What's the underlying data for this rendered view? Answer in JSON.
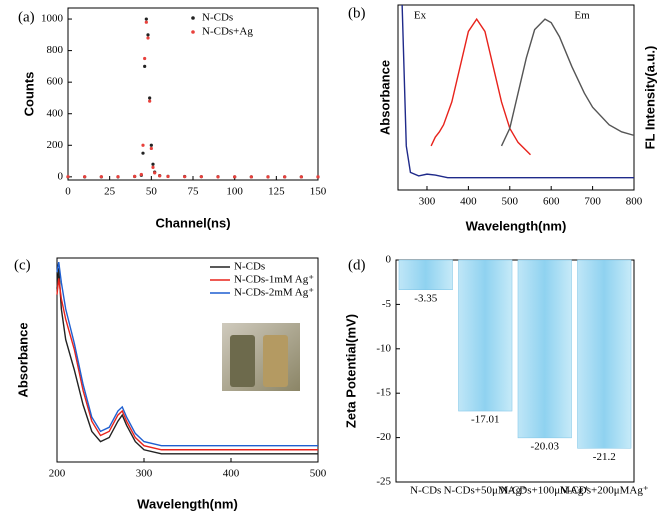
{
  "chart_data": [
    {
      "type": "scatter",
      "panel_label": "(a)",
      "x_label": "Channel(ns)",
      "y_label": "Counts",
      "x": [
        0,
        10,
        20,
        30,
        40,
        44,
        45,
        46,
        47,
        48,
        49,
        50,
        51,
        52,
        55,
        60,
        70,
        80,
        90,
        100,
        110,
        120,
        130,
        140,
        150
      ],
      "series": [
        {
          "name": "N-CDs",
          "color": "#222222",
          "values": [
            0,
            0,
            0,
            0,
            2,
            10,
            150,
            700,
            1000,
            900,
            500,
            200,
            80,
            30,
            8,
            3,
            2,
            1,
            1,
            0,
            0,
            0,
            0,
            0,
            0
          ]
        },
        {
          "name": "N-CDs+Ag",
          "color": "#e8413c",
          "values": [
            1,
            1,
            1,
            1,
            3,
            15,
            200,
            750,
            980,
            880,
            480,
            180,
            60,
            25,
            6,
            2,
            1,
            1,
            0,
            0,
            0,
            0,
            0,
            0,
            0
          ]
        }
      ],
      "xlim": [
        0,
        150
      ],
      "xticks": [
        0,
        25,
        50,
        75,
        100,
        125,
        150
      ],
      "ylim": [
        -20,
        1070
      ],
      "yticks": [
        0,
        200,
        400,
        600,
        800,
        1000
      ]
    },
    {
      "type": "line",
      "panel_label": "(b)",
      "x_label": "Wavelength(nm)",
      "y_label": "Absorbance",
      "y2_label": "FL Intensity(a.u.)",
      "annotations": [
        "Ex",
        "Em"
      ],
      "series": [
        {
          "color": "#1f2a8a",
          "x": [
            240,
            245,
            250,
            260,
            280,
            300,
            320,
            350,
            400,
            450,
            500,
            600,
            700,
            800
          ],
          "values": [
            1.0,
            0.6,
            0.2,
            0.05,
            0.03,
            0.04,
            0.035,
            0.02,
            0.02,
            0.02,
            0.02,
            0.02,
            0.02,
            0.02
          ]
        },
        {
          "color": "#e8231c",
          "axis": "y2",
          "x": [
            310,
            320,
            330,
            340,
            360,
            380,
            400,
            420,
            440,
            460,
            480,
            500,
            520,
            550
          ],
          "values": [
            0.2,
            0.25,
            0.28,
            0.32,
            0.45,
            0.65,
            0.85,
            0.92,
            0.85,
            0.65,
            0.45,
            0.3,
            0.22,
            0.15
          ]
        },
        {
          "color": "#555555",
          "axis": "y2",
          "x": [
            480,
            500,
            520,
            540,
            560,
            585,
            600,
            620,
            650,
            680,
            700,
            740,
            770,
            800
          ],
          "values": [
            0.2,
            0.3,
            0.5,
            0.7,
            0.86,
            0.92,
            0.9,
            0.82,
            0.65,
            0.5,
            0.42,
            0.32,
            0.28,
            0.26
          ]
        }
      ],
      "xlim": [
        230,
        800
      ],
      "xticks": [
        300,
        400,
        500,
        600,
        700,
        800
      ],
      "ylim": [
        -0.05,
        1
      ],
      "y2lim": [
        -0.05,
        1
      ]
    },
    {
      "type": "line",
      "panel_label": "(c)",
      "x_label": "Wavelength(nm)",
      "y_label": "Absorbance",
      "x": [
        200,
        202,
        205,
        210,
        220,
        230,
        240,
        250,
        260,
        270,
        275,
        280,
        290,
        300,
        320,
        350,
        400,
        450,
        500
      ],
      "series": [
        {
          "name": "N-CDs",
          "color": "#222222",
          "values": [
            0.85,
            0.95,
            0.75,
            0.6,
            0.45,
            0.28,
            0.15,
            0.1,
            0.12,
            0.2,
            0.23,
            0.18,
            0.1,
            0.06,
            0.04,
            0.04,
            0.04,
            0.04,
            0.04
          ]
        },
        {
          "name": "N-CDs-1mM Ag⁺",
          "color": "#e8231c",
          "values": [
            0.82,
            0.9,
            0.8,
            0.7,
            0.55,
            0.35,
            0.2,
            0.13,
            0.15,
            0.23,
            0.25,
            0.2,
            0.12,
            0.08,
            0.06,
            0.06,
            0.06,
            0.06,
            0.06
          ]
        },
        {
          "name": "N-CDs-2mM Ag⁺",
          "color": "#1f5fd0",
          "values": [
            0.93,
            0.98,
            0.88,
            0.75,
            0.58,
            0.38,
            0.22,
            0.15,
            0.17,
            0.25,
            0.27,
            0.22,
            0.14,
            0.1,
            0.08,
            0.08,
            0.08,
            0.08,
            0.08
          ]
        }
      ],
      "xlim": [
        200,
        500
      ],
      "xticks": [
        200,
        300,
        400,
        500
      ],
      "ylim": [
        0,
        1
      ]
    },
    {
      "type": "bar",
      "panel_label": "(d)",
      "y_label": "Zeta Potential(mV)",
      "categories": [
        "N-CDs",
        "N-CDs+50μMAg⁺",
        "N-CDs+100μMAg⁺",
        "N-CDs+200μMAg⁺"
      ],
      "values": [
        -3.35,
        -17.01,
        -20.03,
        -21.2
      ],
      "ylim": [
        -25,
        0
      ],
      "yticks": [
        0,
        -5,
        -10,
        -15,
        -20,
        -25
      ]
    }
  ]
}
